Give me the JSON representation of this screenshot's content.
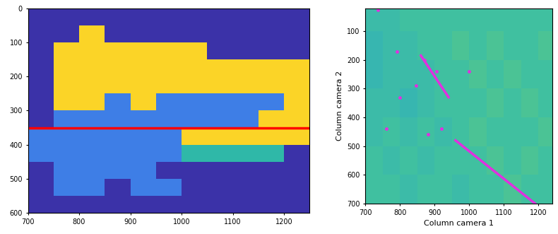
{
  "chart_data": [
    {
      "type": "image",
      "xlim": [
        700,
        1250
      ],
      "ylim": [
        600,
        0
      ],
      "xticks": [
        700,
        800,
        900,
        1000,
        1100,
        1200
      ],
      "yticks": [
        0,
        100,
        200,
        300,
        400,
        500,
        600
      ],
      "x_edges": [
        700,
        750,
        800,
        850,
        900,
        950,
        1000,
        1050,
        1100,
        1150,
        1200,
        1250
      ],
      "y_edges": [
        0,
        50,
        100,
        150,
        200,
        250,
        300,
        350,
        400,
        450,
        500,
        550,
        600
      ],
      "colors": [
        "#3b32a8",
        "#3e7ee6",
        "#2fb8a8",
        "#fbd427"
      ],
      "cells": [
        [
          0,
          0,
          0,
          0,
          0,
          0,
          0,
          0,
          0,
          0,
          0
        ],
        [
          0,
          0,
          3,
          0,
          0,
          0,
          0,
          0,
          0,
          0,
          0
        ],
        [
          0,
          3,
          3,
          3,
          3,
          3,
          3,
          0,
          0,
          0,
          0
        ],
        [
          0,
          3,
          3,
          3,
          3,
          3,
          3,
          3,
          3,
          3,
          3
        ],
        [
          0,
          3,
          3,
          3,
          3,
          3,
          3,
          3,
          3,
          3,
          3
        ],
        [
          0,
          3,
          3,
          1,
          3,
          1,
          1,
          1,
          1,
          1,
          3
        ],
        [
          0,
          1,
          1,
          1,
          1,
          1,
          1,
          1,
          1,
          3,
          3
        ],
        [
          1,
          1,
          1,
          1,
          1,
          1,
          3,
          3,
          3,
          3,
          3
        ],
        [
          1,
          1,
          1,
          1,
          1,
          1,
          2,
          2,
          2,
          2,
          0
        ],
        [
          0,
          1,
          1,
          1,
          1,
          0,
          0,
          0,
          0,
          0,
          0
        ],
        [
          0,
          1,
          1,
          0,
          1,
          1,
          0,
          0,
          0,
          0,
          0
        ],
        [
          0,
          0,
          0,
          0,
          0,
          0,
          0,
          0,
          0,
          0,
          0
        ]
      ],
      "hline": {
        "y": 350,
        "color": "#ff0000"
      }
    },
    {
      "type": "image",
      "x_label": "Column camera 1",
      "y_label": "Column camera 2",
      "xlim": [
        700,
        1240
      ],
      "ylim": [
        700,
        20
      ],
      "xticks": [
        700,
        800,
        900,
        1000,
        1100,
        1200
      ],
      "yticks": [
        100,
        200,
        300,
        400,
        500,
        600,
        700
      ],
      "x_edges": [
        700,
        750,
        800,
        850,
        900,
        950,
        1000,
        1050,
        1100,
        1150,
        1200,
        1240
      ],
      "y_edges": [
        20,
        100,
        200,
        300,
        400,
        500,
        600,
        700
      ],
      "clim": [
        0,
        1
      ],
      "cells": [
        [
          0.45,
          0.45,
          0.5,
          0.5,
          0.5,
          0.5,
          0.5,
          0.5,
          0.5,
          0.5,
          0.5
        ],
        [
          0.4,
          0.45,
          0.45,
          0.5,
          0.5,
          0.55,
          0.5,
          0.55,
          0.5,
          0.5,
          0.55
        ],
        [
          0.4,
          0.45,
          0.45,
          0.45,
          0.5,
          0.5,
          0.55,
          0.5,
          0.55,
          0.5,
          0.5
        ],
        [
          0.45,
          0.45,
          0.4,
          0.45,
          0.5,
          0.5,
          0.5,
          0.55,
          0.5,
          0.55,
          0.5
        ],
        [
          0.45,
          0.5,
          0.45,
          0.5,
          0.45,
          0.5,
          0.55,
          0.5,
          0.5,
          0.5,
          0.55
        ],
        [
          0.5,
          0.45,
          0.5,
          0.45,
          0.5,
          0.5,
          0.5,
          0.55,
          0.5,
          0.55,
          0.5
        ],
        [
          0.5,
          0.5,
          0.45,
          0.5,
          0.5,
          0.45,
          0.5,
          0.5,
          0.55,
          0.5,
          0.5
        ]
      ],
      "color": "#e030e0",
      "lines": [
        {
          "x": [
            860,
            940
          ],
          "y": [
            185,
            330
          ]
        },
        {
          "x": [
            960,
            1190
          ],
          "y": [
            480,
            700
          ]
        }
      ],
      "points": {
        "x": [
          735,
          790,
          870,
          905,
          845,
          760,
          880,
          920,
          800,
          1000
        ],
        "y": [
          25,
          170,
          200,
          240,
          290,
          440,
          460,
          440,
          330,
          240
        ]
      }
    }
  ]
}
